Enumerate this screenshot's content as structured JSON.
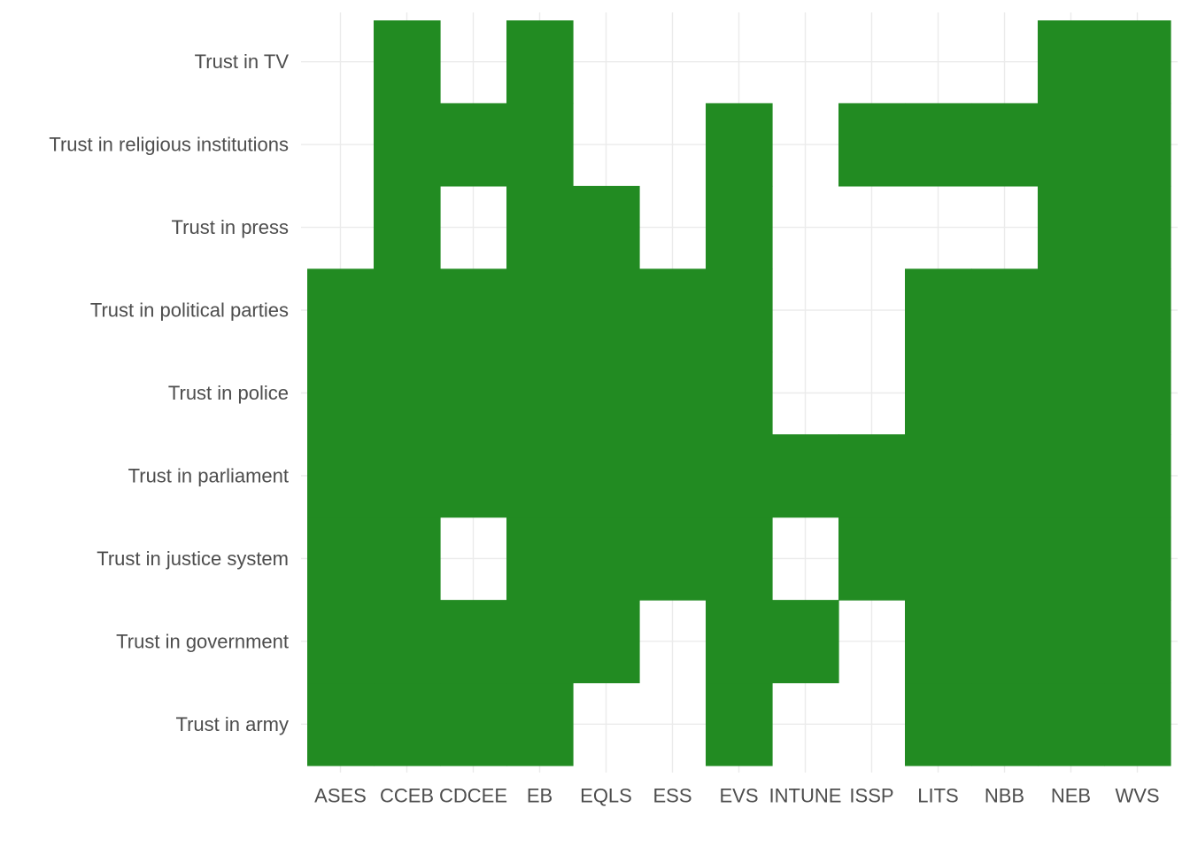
{
  "chart_data": {
    "type": "heatmap",
    "title": "",
    "xlabel": "",
    "ylabel": "",
    "grid": true,
    "legend": "none",
    "colors": {
      "fill": "#228b22",
      "grid": "#ebebeb",
      "text": "#4d4d4d",
      "background": "#ffffff"
    },
    "x_categories": [
      "ASES",
      "CCEB",
      "CDCEE",
      "EB",
      "EQLS",
      "ESS",
      "EVS",
      "INTUNE",
      "ISSP",
      "LITS",
      "NBB",
      "NEB",
      "WVS"
    ],
    "y_categories": [
      "Trust in army",
      "Trust in government",
      "Trust in justice system",
      "Trust in parliament",
      "Trust in police",
      "Trust in political parties",
      "Trust in press",
      "Trust in religious institutions",
      "Trust in TV"
    ],
    "cells": [
      [
        "ASES",
        "Trust in army"
      ],
      [
        "CCEB",
        "Trust in army"
      ],
      [
        "CDCEE",
        "Trust in army"
      ],
      [
        "EB",
        "Trust in army"
      ],
      [
        "EVS",
        "Trust in army"
      ],
      [
        "LITS",
        "Trust in army"
      ],
      [
        "NBB",
        "Trust in army"
      ],
      [
        "NEB",
        "Trust in army"
      ],
      [
        "WVS",
        "Trust in army"
      ],
      [
        "ASES",
        "Trust in government"
      ],
      [
        "CCEB",
        "Trust in government"
      ],
      [
        "CDCEE",
        "Trust in government"
      ],
      [
        "EB",
        "Trust in government"
      ],
      [
        "EQLS",
        "Trust in government"
      ],
      [
        "EVS",
        "Trust in government"
      ],
      [
        "INTUNE",
        "Trust in government"
      ],
      [
        "LITS",
        "Trust in government"
      ],
      [
        "NBB",
        "Trust in government"
      ],
      [
        "NEB",
        "Trust in government"
      ],
      [
        "WVS",
        "Trust in government"
      ],
      [
        "ASES",
        "Trust in justice system"
      ],
      [
        "CCEB",
        "Trust in justice system"
      ],
      [
        "EB",
        "Trust in justice system"
      ],
      [
        "EQLS",
        "Trust in justice system"
      ],
      [
        "ESS",
        "Trust in justice system"
      ],
      [
        "EVS",
        "Trust in justice system"
      ],
      [
        "ISSP",
        "Trust in justice system"
      ],
      [
        "LITS",
        "Trust in justice system"
      ],
      [
        "NBB",
        "Trust in justice system"
      ],
      [
        "NEB",
        "Trust in justice system"
      ],
      [
        "WVS",
        "Trust in justice system"
      ],
      [
        "ASES",
        "Trust in parliament"
      ],
      [
        "CCEB",
        "Trust in parliament"
      ],
      [
        "CDCEE",
        "Trust in parliament"
      ],
      [
        "EB",
        "Trust in parliament"
      ],
      [
        "EQLS",
        "Trust in parliament"
      ],
      [
        "ESS",
        "Trust in parliament"
      ],
      [
        "EVS",
        "Trust in parliament"
      ],
      [
        "INTUNE",
        "Trust in parliament"
      ],
      [
        "ISSP",
        "Trust in parliament"
      ],
      [
        "LITS",
        "Trust in parliament"
      ],
      [
        "NBB",
        "Trust in parliament"
      ],
      [
        "NEB",
        "Trust in parliament"
      ],
      [
        "WVS",
        "Trust in parliament"
      ],
      [
        "ASES",
        "Trust in police"
      ],
      [
        "CCEB",
        "Trust in police"
      ],
      [
        "CDCEE",
        "Trust in police"
      ],
      [
        "EB",
        "Trust in police"
      ],
      [
        "EQLS",
        "Trust in police"
      ],
      [
        "ESS",
        "Trust in police"
      ],
      [
        "EVS",
        "Trust in police"
      ],
      [
        "LITS",
        "Trust in police"
      ],
      [
        "NBB",
        "Trust in police"
      ],
      [
        "NEB",
        "Trust in police"
      ],
      [
        "WVS",
        "Trust in police"
      ],
      [
        "ASES",
        "Trust in political parties"
      ],
      [
        "CCEB",
        "Trust in political parties"
      ],
      [
        "CDCEE",
        "Trust in political parties"
      ],
      [
        "EB",
        "Trust in political parties"
      ],
      [
        "EQLS",
        "Trust in political parties"
      ],
      [
        "ESS",
        "Trust in political parties"
      ],
      [
        "EVS",
        "Trust in political parties"
      ],
      [
        "LITS",
        "Trust in political parties"
      ],
      [
        "NBB",
        "Trust in political parties"
      ],
      [
        "NEB",
        "Trust in political parties"
      ],
      [
        "WVS",
        "Trust in political parties"
      ],
      [
        "CCEB",
        "Trust in press"
      ],
      [
        "EB",
        "Trust in press"
      ],
      [
        "EQLS",
        "Trust in press"
      ],
      [
        "EVS",
        "Trust in press"
      ],
      [
        "NEB",
        "Trust in press"
      ],
      [
        "WVS",
        "Trust in press"
      ],
      [
        "CCEB",
        "Trust in religious institutions"
      ],
      [
        "CDCEE",
        "Trust in religious institutions"
      ],
      [
        "EB",
        "Trust in religious institutions"
      ],
      [
        "EVS",
        "Trust in religious institutions"
      ],
      [
        "ISSP",
        "Trust in religious institutions"
      ],
      [
        "LITS",
        "Trust in religious institutions"
      ],
      [
        "NBB",
        "Trust in religious institutions"
      ],
      [
        "NEB",
        "Trust in religious institutions"
      ],
      [
        "WVS",
        "Trust in religious institutions"
      ],
      [
        "CCEB",
        "Trust in TV"
      ],
      [
        "EB",
        "Trust in TV"
      ],
      [
        "NEB",
        "Trust in TV"
      ],
      [
        "WVS",
        "Trust in TV"
      ]
    ]
  }
}
